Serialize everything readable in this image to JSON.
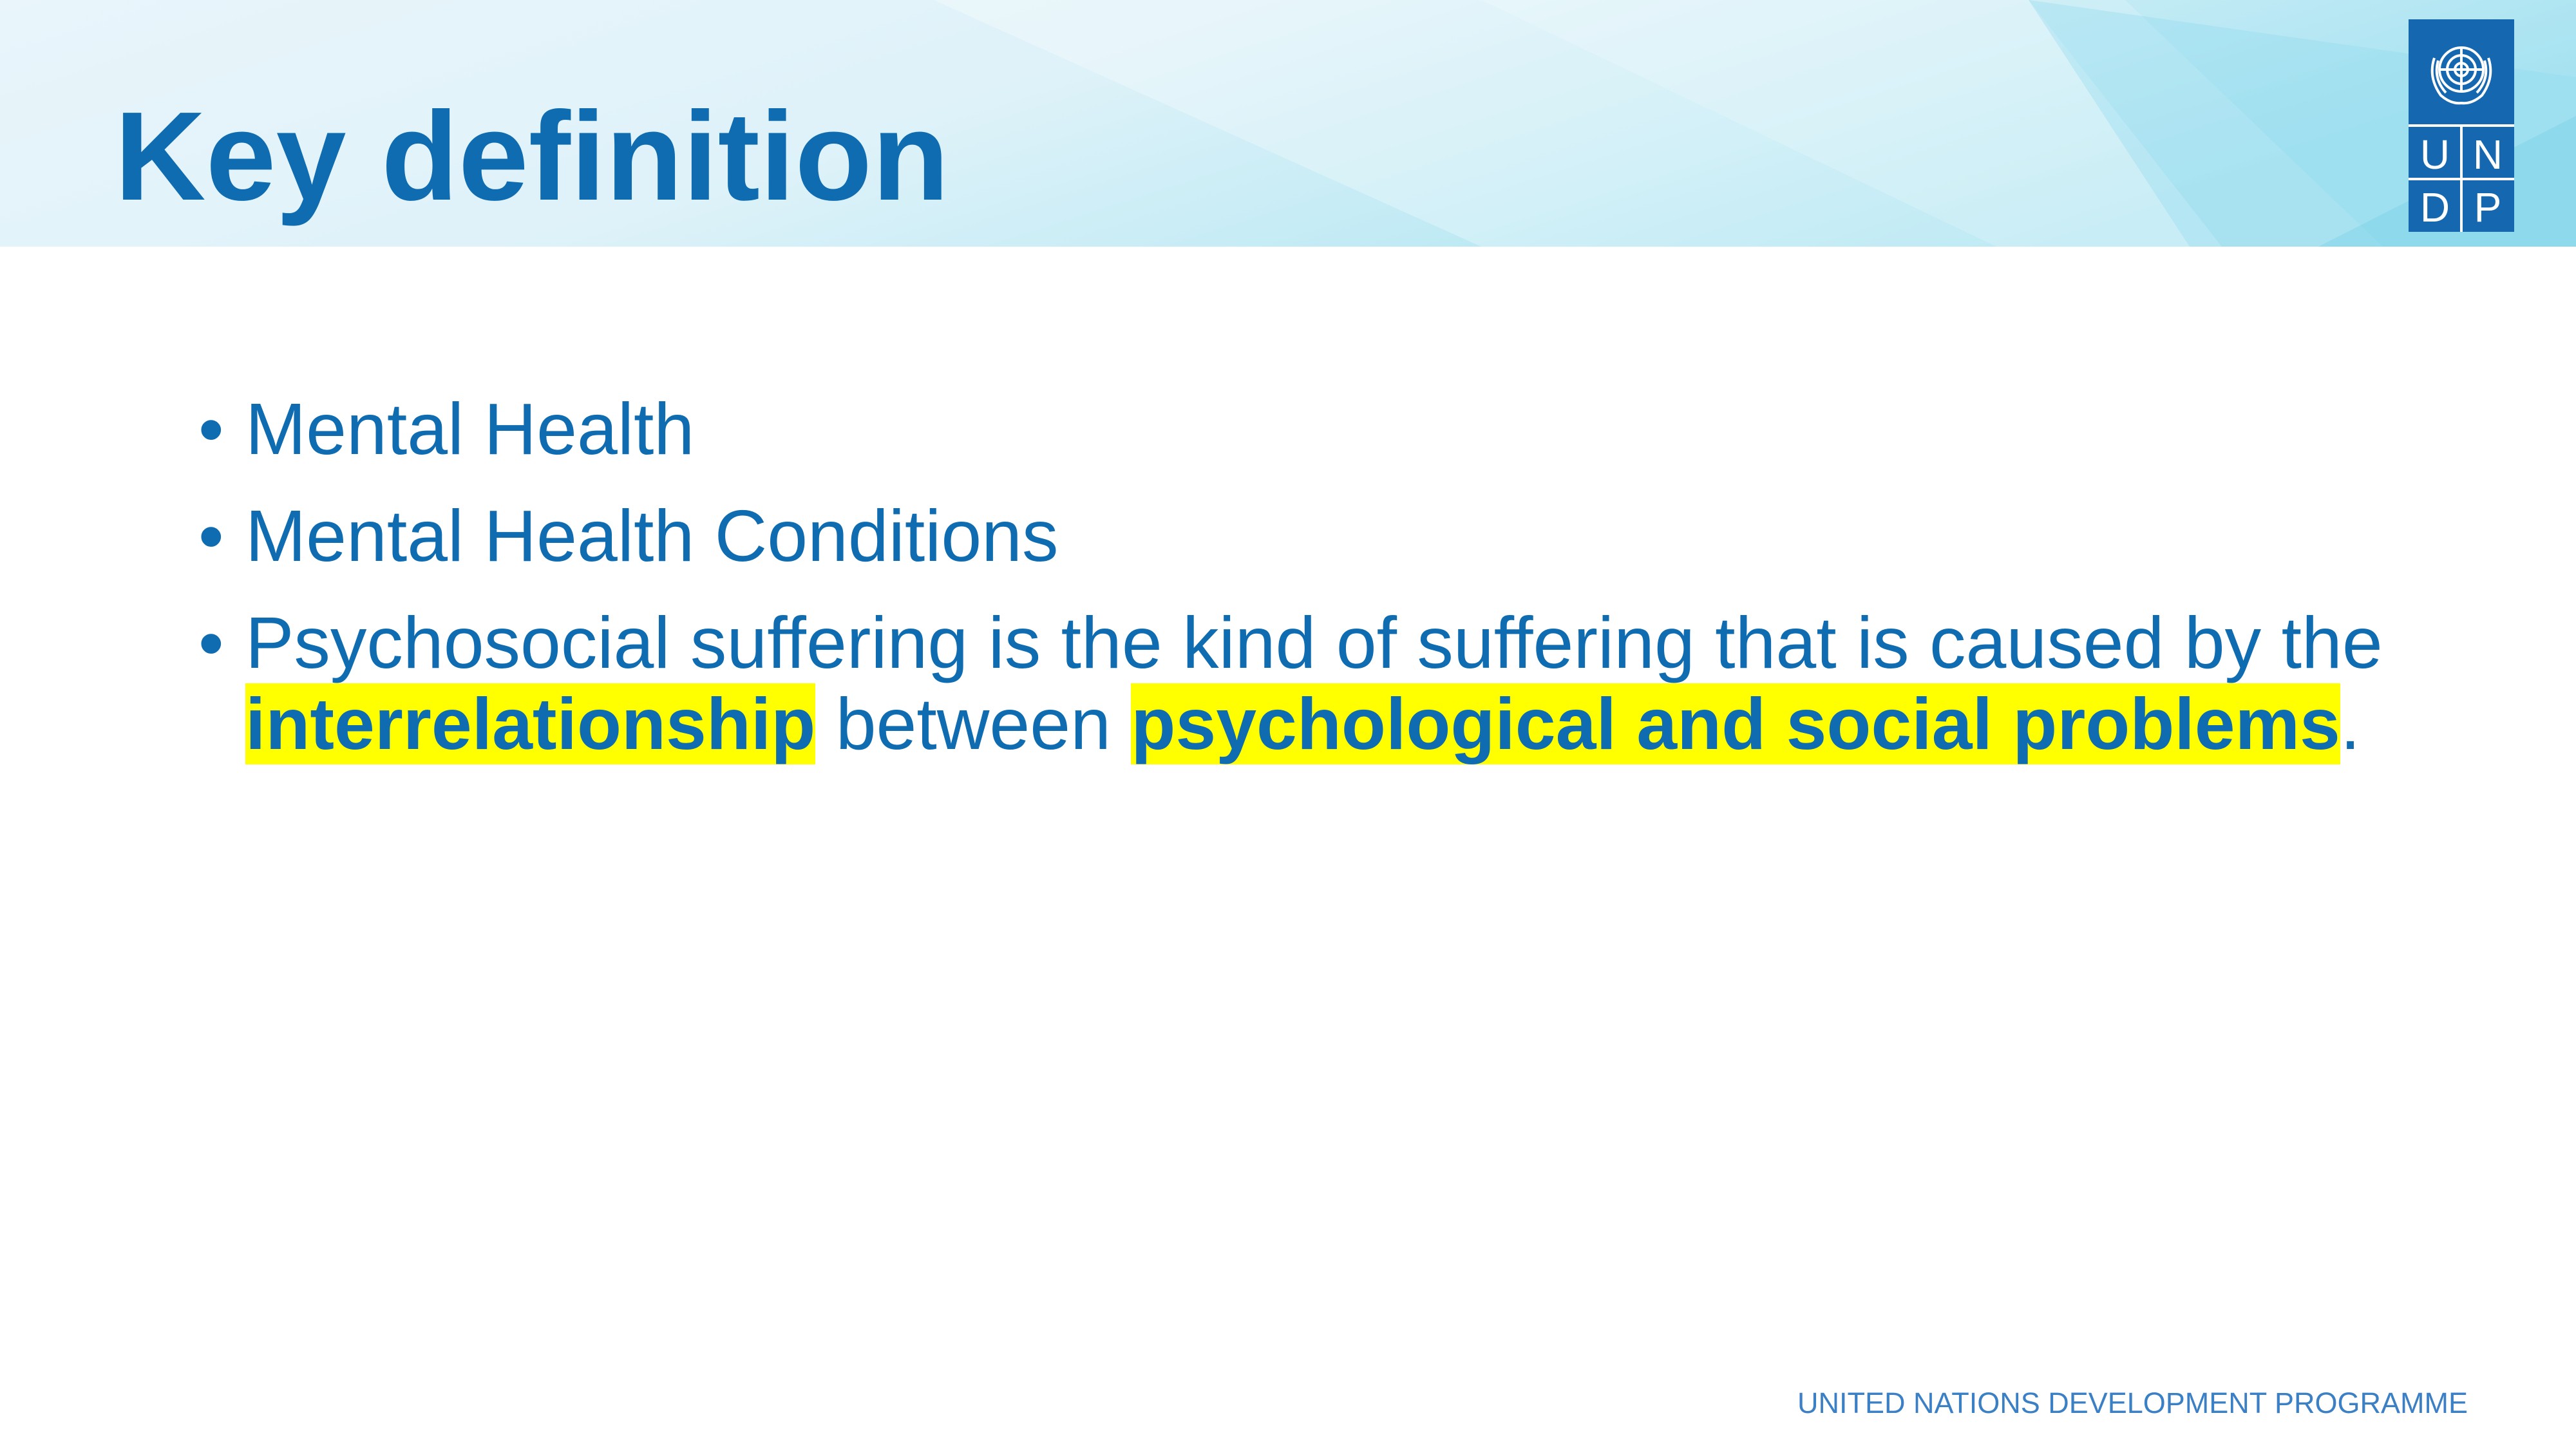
{
  "slide": {
    "title": "Key definition",
    "bullet_symbol": "•",
    "bullets": [
      {
        "text": "Mental Health"
      },
      {
        "text": "Mental Health Conditions"
      },
      {
        "part1": "Psychosocial suffering is the kind of suffering that is caused by the ",
        "highlight1": "interrelationship",
        "part2": " between ",
        "highlight2": "psychological and social problems",
        "part3": "."
      }
    ],
    "footer": "UNITED NATIONS DEVELOPMENT PROGRAMME",
    "highlight_color": "#ffff00",
    "text_color": "#0f6cb1"
  },
  "logo": {
    "icon": "un-emblem-icon",
    "letters": [
      "U",
      "N",
      "D",
      "P"
    ],
    "color": "#1567b0"
  }
}
